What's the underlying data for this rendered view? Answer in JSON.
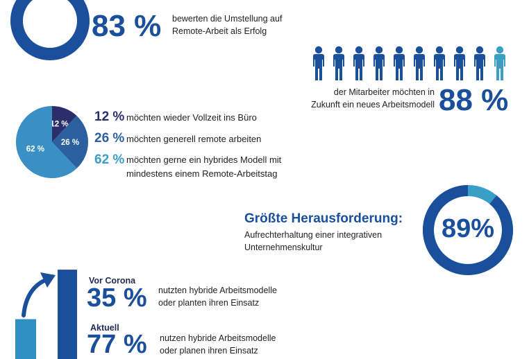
{
  "colors": {
    "dark_blue": "#1a4f9c",
    "navy": "#2a2f6b",
    "mid_blue": "#2c5f9e",
    "light_blue": "#3a8fc4",
    "teal": "#3a9fc6"
  },
  "stat_success": {
    "value_text": "83 %",
    "value": 83,
    "text_line1": "bewerten die Umstellung auf",
    "text_line2": "Remote-Arbeit als Erfolg"
  },
  "stat_people": {
    "value_text": "88 %",
    "value": 88,
    "icon_count": 10,
    "highlighted": 1,
    "text_line1": "der Mitarbeiter möchten in",
    "text_line2": "Zukunft ein neues Arbeitsmodell"
  },
  "preferences": {
    "items": [
      {
        "pct": "12 %",
        "text": "möchten wieder Vollzeit ins Büro",
        "text2": ""
      },
      {
        "pct": "26 %",
        "text": "möchten generell remote arbeiten",
        "text2": ""
      },
      {
        "pct": "62 %",
        "text": "möchten gerne ein hybrides Modell mit",
        "text2": "mindestens einem Remote-Arbeitstag"
      }
    ]
  },
  "challenge": {
    "title": "Größte Herausforderung:",
    "text_line1": "Aufrechterhaltung einer integrativen",
    "text_line2": "Unternehmenskultur",
    "value_text": "89%",
    "value": 89
  },
  "hybrid": {
    "before": {
      "label": "Vor Corona",
      "value_text": "35 %",
      "text_line1": "nutzten hybride Arbeitsmodelle",
      "text_line2": "oder planten ihren Einsatz"
    },
    "now": {
      "label": "Aktuell",
      "value_text": "77 %",
      "text_line1": "nutzen hybride Arbeitsmodelle",
      "text_line2": "oder planen ihren Einsatz"
    }
  },
  "chart_data": [
    {
      "type": "pie",
      "labels": [
        "12 %",
        "26 %",
        "62 %"
      ],
      "values": [
        12,
        26,
        62
      ],
      "colors": [
        "#2a2f6b",
        "#2c5f9e",
        "#3a8fc4"
      ]
    },
    {
      "type": "bar",
      "categories": [
        "Vor Corona",
        "Aktuell"
      ],
      "values": [
        35,
        77
      ],
      "colors": [
        "#2f8fc4",
        "#1a4f9c"
      ]
    }
  ]
}
